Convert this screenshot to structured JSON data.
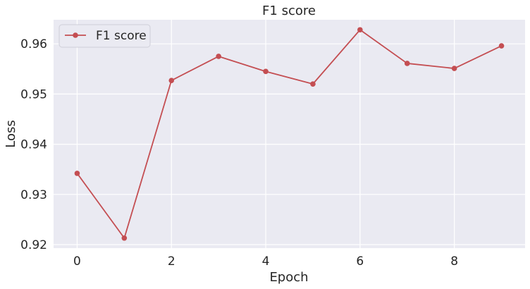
{
  "chart_data": {
    "type": "line",
    "title": "F1 score",
    "xlabel": "Epoch",
    "ylabel": "Loss",
    "x": [
      0,
      1,
      2,
      3,
      4,
      5,
      6,
      7,
      8,
      9
    ],
    "x_ticks": [
      0,
      2,
      4,
      6,
      8
    ],
    "y_ticks": [
      0.92,
      0.93,
      0.94,
      0.95,
      0.96
    ],
    "xlim": [
      -0.5,
      9.5
    ],
    "ylim": [
      0.9193,
      0.9648
    ],
    "grid": true,
    "legend_position": "top-left",
    "series": [
      {
        "name": "F1 score",
        "color": "#c44e52",
        "marker": "circle",
        "values": [
          0.9342,
          0.9213,
          0.9527,
          0.9575,
          0.9545,
          0.952,
          0.9628,
          0.9561,
          0.9551,
          0.9596
        ]
      }
    ]
  }
}
